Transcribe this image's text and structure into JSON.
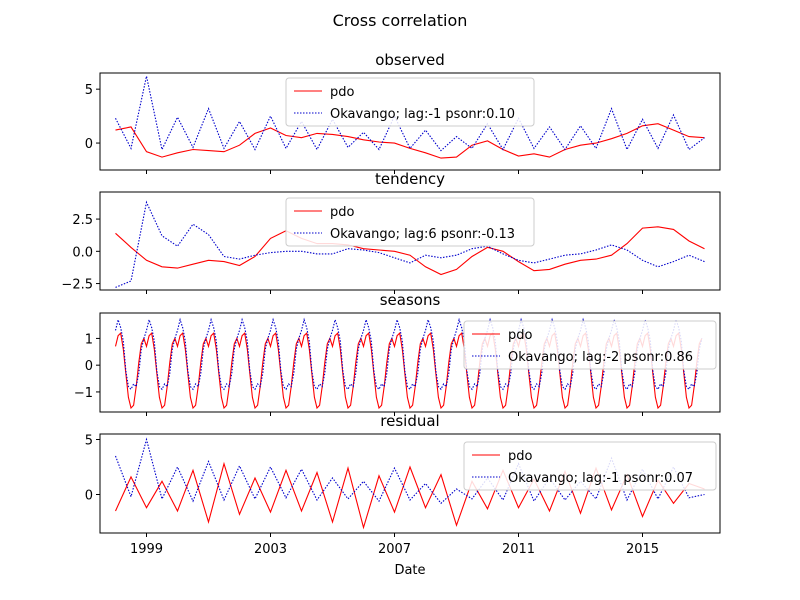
{
  "figure": {
    "title": "Cross correlation",
    "xlabel": "Date",
    "xticks": [
      "1999",
      "2003",
      "2007",
      "2011",
      "2015"
    ]
  },
  "colors": {
    "pdo": "#ff0000",
    "river": "#0000cc",
    "axes": "#000000"
  },
  "chart_data": [
    {
      "type": "line",
      "title": "observed",
      "x_range": [
        1997.5,
        2017.5
      ],
      "ylim": [
        -2.5,
        6.5
      ],
      "yticks": [
        0,
        5
      ],
      "legend_position": "top-center",
      "series": [
        {
          "name": "pdo",
          "style": "solid",
          "color": "#ff0000",
          "x": [
            1998.0,
            1998.5,
            1999.0,
            1999.5,
            2000.0,
            2000.5,
            2001.0,
            2001.5,
            2002.0,
            2002.5,
            2003.0,
            2003.5,
            2004.0,
            2004.5,
            2005.0,
            2005.5,
            2006.0,
            2006.5,
            2007.0,
            2007.5,
            2008.0,
            2008.5,
            2009.0,
            2009.5,
            2010.0,
            2010.5,
            2011.0,
            2011.5,
            2012.0,
            2012.5,
            2013.0,
            2013.5,
            2014.0,
            2014.5,
            2015.0,
            2015.5,
            2016.0,
            2016.5,
            2017.0
          ],
          "y": [
            1.2,
            1.5,
            -0.8,
            -1.3,
            -0.9,
            -0.6,
            -0.7,
            -0.8,
            -0.2,
            0.9,
            1.4,
            0.7,
            0.5,
            0.9,
            0.8,
            0.6,
            0.3,
            0.1,
            0.0,
            -0.5,
            -0.9,
            -1.4,
            -1.3,
            -0.2,
            0.2,
            -0.6,
            -1.2,
            -1.0,
            -1.3,
            -0.6,
            -0.2,
            0.0,
            0.4,
            0.9,
            1.6,
            1.8,
            1.2,
            0.6,
            0.5
          ]
        },
        {
          "name": "Okavango; lag:-1 psonr:0.10",
          "style": "dotted",
          "color": "#0000cc",
          "x": [
            1998.0,
            1998.5,
            1999.0,
            1999.5,
            2000.0,
            2000.5,
            2001.0,
            2001.5,
            2002.0,
            2002.5,
            2003.0,
            2003.5,
            2004.0,
            2004.5,
            2005.0,
            2005.5,
            2006.0,
            2006.5,
            2007.0,
            2007.5,
            2008.0,
            2008.5,
            2009.0,
            2009.5,
            2010.0,
            2010.5,
            2011.0,
            2011.5,
            2012.0,
            2012.5,
            2013.0,
            2013.5,
            2014.0,
            2014.5,
            2015.0,
            2015.5,
            2016.0,
            2016.5,
            2017.0
          ],
          "y": [
            2.3,
            -0.5,
            6.2,
            -0.6,
            2.4,
            -0.4,
            3.2,
            -0.5,
            2.0,
            -0.6,
            2.5,
            -0.5,
            2.0,
            -0.6,
            2.2,
            -0.4,
            1.0,
            -0.6,
            2.5,
            -0.5,
            1.2,
            -0.7,
            0.6,
            -0.5,
            1.8,
            -0.6,
            2.3,
            -0.5,
            1.5,
            -0.6,
            1.6,
            -0.5,
            3.2,
            -0.6,
            2.2,
            -0.5,
            2.6,
            -0.6,
            0.5
          ]
        }
      ]
    },
    {
      "type": "line",
      "title": "tendency",
      "x_range": [
        1997.5,
        2017.5
      ],
      "ylim": [
        -3.0,
        4.6
      ],
      "yticks": [
        -2.5,
        0.0,
        2.5
      ],
      "legend_position": "top-center",
      "series": [
        {
          "name": "pdo",
          "style": "solid",
          "color": "#ff0000",
          "x": [
            1998.0,
            1998.5,
            1999.0,
            1999.5,
            2000.0,
            2000.5,
            2001.0,
            2001.5,
            2002.0,
            2002.5,
            2003.0,
            2003.5,
            2004.0,
            2004.5,
            2005.0,
            2005.5,
            2006.0,
            2006.5,
            2007.0,
            2007.5,
            2008.0,
            2008.5,
            2009.0,
            2009.5,
            2010.0,
            2010.5,
            2011.0,
            2011.5,
            2012.0,
            2012.5,
            2013.0,
            2013.5,
            2014.0,
            2014.5,
            2015.0,
            2015.5,
            2016.0,
            2016.5,
            2017.0
          ],
          "y": [
            1.4,
            0.3,
            -0.7,
            -1.2,
            -1.3,
            -1.0,
            -0.7,
            -0.8,
            -1.1,
            -0.4,
            1.0,
            1.6,
            1.0,
            0.6,
            0.6,
            0.5,
            0.2,
            0.1,
            0.0,
            -0.3,
            -1.2,
            -1.8,
            -1.4,
            -0.4,
            0.3,
            0.0,
            -0.8,
            -1.5,
            -1.4,
            -1.0,
            -0.7,
            -0.6,
            -0.3,
            0.6,
            1.8,
            1.9,
            1.7,
            0.8,
            0.2
          ]
        },
        {
          "name": "Okavango; lag:6 psonr:-0.13",
          "style": "dotted",
          "color": "#0000cc",
          "x": [
            1998.0,
            1998.5,
            1999.0,
            1999.5,
            2000.0,
            2000.5,
            2001.0,
            2001.5,
            2002.0,
            2002.5,
            2003.0,
            2003.5,
            2004.0,
            2004.5,
            2005.0,
            2005.5,
            2006.0,
            2006.5,
            2007.0,
            2007.5,
            2008.0,
            2008.5,
            2009.0,
            2009.5,
            2010.0,
            2010.5,
            2011.0,
            2011.5,
            2012.0,
            2012.5,
            2013.0,
            2013.5,
            2014.0,
            2014.5,
            2015.0,
            2015.5,
            2016.0,
            2016.5,
            2017.0
          ],
          "y": [
            -2.8,
            -2.3,
            3.8,
            1.2,
            0.4,
            2.1,
            1.3,
            -0.4,
            -0.6,
            -0.3,
            -0.1,
            0.0,
            0.0,
            -0.2,
            -0.2,
            0.2,
            0.1,
            -0.1,
            -0.5,
            -0.9,
            -0.3,
            -0.5,
            -0.3,
            0.2,
            0.4,
            -0.2,
            -0.7,
            -0.9,
            -0.6,
            -0.3,
            -0.2,
            0.1,
            0.5,
            0.1,
            -0.7,
            -1.2,
            -0.8,
            -0.3,
            -0.8
          ]
        }
      ]
    },
    {
      "type": "line",
      "title": "seasons",
      "x_range": [
        1997.5,
        2017.5
      ],
      "ylim": [
        -1.75,
        1.95
      ],
      "yticks": [
        -1,
        0,
        1
      ],
      "legend_position": "top-right",
      "seasonal_cycle": {
        "start_year": 1998,
        "end_year": 2017,
        "month_values_pdo": [
          0.7,
          1.1,
          1.2,
          0.6,
          -0.3,
          -1.2,
          -1.6,
          -1.5,
          -0.8,
          0.1,
          0.8,
          1.0
        ],
        "month_values_river": [
          1.3,
          1.7,
          1.4,
          0.9,
          -0.2,
          -0.8,
          -0.9,
          -0.7,
          -0.8,
          -0.3,
          0.6,
          1.0
        ]
      },
      "series": [
        {
          "name": "pdo",
          "style": "solid",
          "color": "#ff0000"
        },
        {
          "name": "Okavango; lag:-2 psonr:0.86",
          "style": "dotted",
          "color": "#0000cc"
        }
      ]
    },
    {
      "type": "line",
      "title": "residual",
      "x_range": [
        1997.5,
        2017.5
      ],
      "ylim": [
        -3.5,
        5.5
      ],
      "yticks": [
        0,
        5
      ],
      "legend_position": "top-right",
      "series": [
        {
          "name": "pdo",
          "style": "solid",
          "color": "#ff0000",
          "x": [
            1998.0,
            1998.5,
            1999.0,
            1999.5,
            2000.0,
            2000.5,
            2001.0,
            2001.5,
            2002.0,
            2002.5,
            2003.0,
            2003.5,
            2004.0,
            2004.5,
            2005.0,
            2005.5,
            2006.0,
            2006.5,
            2007.0,
            2007.5,
            2008.0,
            2008.5,
            2009.0,
            2009.5,
            2010.0,
            2010.5,
            2011.0,
            2011.5,
            2012.0,
            2012.5,
            2013.0,
            2013.5,
            2014.0,
            2014.5,
            2015.0,
            2015.5,
            2016.0,
            2016.5,
            2017.0
          ],
          "y": [
            -1.5,
            1.6,
            -1.2,
            1.2,
            -1.5,
            2.2,
            -2.5,
            2.8,
            -1.8,
            1.5,
            -1.6,
            2.2,
            -1.5,
            2.0,
            -2.5,
            2.4,
            -3.0,
            1.7,
            -1.6,
            2.5,
            -1.2,
            1.8,
            -2.8,
            1.2,
            -1.3,
            2.2,
            -1.2,
            1.4,
            -1.5,
            2.1,
            -1.7,
            2.4,
            -1.4,
            1.8,
            -2.0,
            1.3,
            -0.8,
            1.0,
            0.5
          ]
        },
        {
          "name": "Okavango; lag:-1 psonr:0.07",
          "style": "dotted",
          "color": "#0000cc",
          "x": [
            1998.0,
            1998.5,
            1999.0,
            1999.5,
            2000.0,
            2000.5,
            2001.0,
            2001.5,
            2002.0,
            2002.5,
            2003.0,
            2003.5,
            2004.0,
            2004.5,
            2005.0,
            2005.5,
            2006.0,
            2006.5,
            2007.0,
            2007.5,
            2008.0,
            2008.5,
            2009.0,
            2009.5,
            2010.0,
            2010.5,
            2011.0,
            2011.5,
            2012.0,
            2012.5,
            2013.0,
            2013.5,
            2014.0,
            2014.5,
            2015.0,
            2015.5,
            2016.0,
            2016.5,
            2017.0
          ],
          "y": [
            3.5,
            -0.2,
            5.0,
            -0.4,
            2.5,
            -0.6,
            3.0,
            -0.5,
            2.6,
            -0.4,
            2.5,
            -0.3,
            2.3,
            -0.5,
            1.5,
            -0.4,
            1.2,
            -0.6,
            2.4,
            -0.5,
            1.0,
            -0.8,
            0.5,
            -0.4,
            1.5,
            -0.5,
            2.8,
            -0.6,
            1.5,
            -0.5,
            1.2,
            -0.4,
            3.3,
            -0.5,
            2.3,
            -0.4,
            2.5,
            -0.3,
            0.0
          ]
        }
      ]
    }
  ]
}
